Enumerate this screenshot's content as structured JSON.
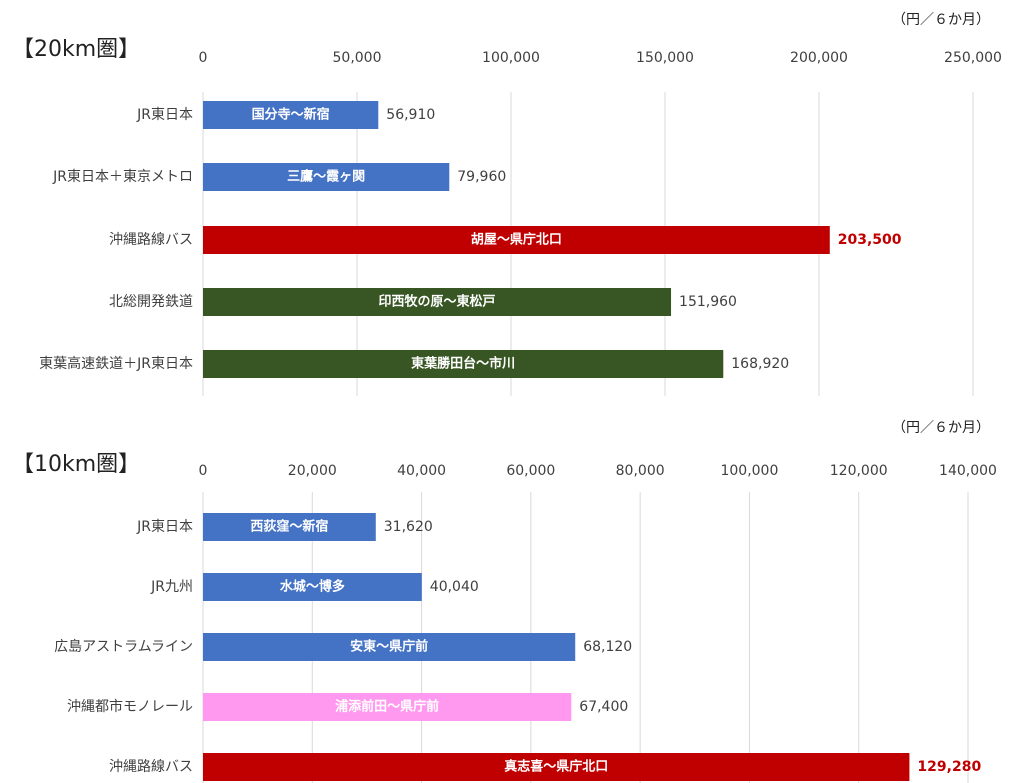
{
  "chart_data": [
    {
      "type": "barh",
      "title": "【20km圏】",
      "unit": "（円／６か月）",
      "categories": [
        "JR東日本",
        "JR東日本＋東京メトロ",
        "沖縄路線バス",
        "北総開発鉄道",
        "東葉高速鉄道＋JR東日本"
      ],
      "bar_labels": [
        "国分寺～新宿",
        "三鷹～霞ヶ関",
        "胡屋～県庁北口",
        "印西牧の原～東松戸",
        "東葉勝田台～市川"
      ],
      "values": [
        56910,
        79960,
        203500,
        151960,
        168920
      ],
      "value_labels": [
        "56,910",
        "79,960",
        "203,500",
        "151,960",
        "168,920"
      ],
      "colors": [
        "#4472c4",
        "#4472c4",
        "#c00000",
        "#375623",
        "#375623"
      ],
      "value_label_colors": [
        "#404040",
        "#404040",
        "#c00000",
        "#404040",
        "#404040"
      ],
      "xlim": [
        0,
        250000
      ],
      "xticks": [
        0,
        {
          "value": 50000,
          "label": "50,000"
        },
        {
          "value": 100000,
          "label": "100,000"
        },
        {
          "value": 150000,
          "label": "150,000"
        },
        {
          "value": 200000,
          "label": "200,000"
        },
        {
          "value": 250000,
          "label": "250,000"
        }
      ],
      "grid": true
    },
    {
      "type": "barh",
      "title": "【10km圏】",
      "unit": "（円／６か月）",
      "categories": [
        "JR東日本",
        "JR九州",
        "広島アストラムライン",
        "沖縄都市モノレール",
        "沖縄路線バス"
      ],
      "bar_labels": [
        "西荻窪～新宿",
        "水城～博多",
        "安東～県庁前",
        "浦添前田～県庁前",
        "真志喜～県庁北口"
      ],
      "values": [
        31620,
        40040,
        68120,
        67400,
        129280
      ],
      "value_labels": [
        "31,620",
        "40,040",
        "68,120",
        "67,400",
        "129,280"
      ],
      "colors": [
        "#4472c4",
        "#4472c4",
        "#4472c4",
        "#ff99f0",
        "#c00000"
      ],
      "value_label_colors": [
        "#404040",
        "#404040",
        "#404040",
        "#404040",
        "#c00000"
      ],
      "xlim": [
        0,
        140000
      ],
      "xticks": [
        0,
        {
          "value": 20000,
          "label": "20,000"
        },
        {
          "value": 40000,
          "label": "40,000"
        },
        {
          "value": 60000,
          "label": "60,000"
        },
        {
          "value": 80000,
          "label": "80,000"
        },
        {
          "value": 100000,
          "label": "100,000"
        },
        {
          "value": 120000,
          "label": "120,000"
        },
        {
          "value": 140000,
          "label": "140,000"
        }
      ],
      "grid": true
    }
  ]
}
